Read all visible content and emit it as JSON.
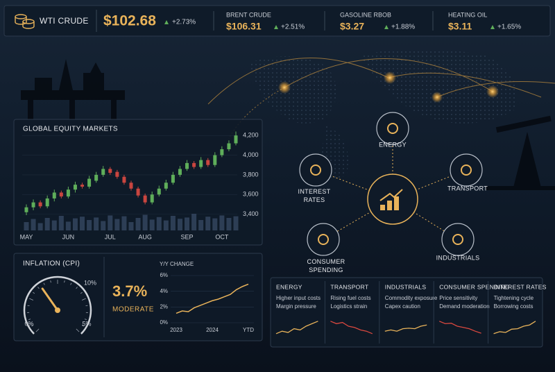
{
  "ticker": [
    {
      "name": "WTI CRUDE",
      "price": "$102.68",
      "change": "+2.73%"
    },
    {
      "name": "BRENT CRUDE",
      "price": "$106.31",
      "change": "+2.51%"
    },
    {
      "name": "GASOLINE RBOB",
      "price": "$3.27",
      "change": "+1.88%"
    },
    {
      "name": "HEATING OIL",
      "price": "$3.11",
      "change": "+1.65%"
    }
  ],
  "equity": {
    "type": "candlestick",
    "title": "GLOBAL EQUITY MARKETS",
    "categories": [
      "MAY",
      null,
      null,
      null,
      null,
      null,
      "JUN",
      null,
      null,
      null,
      null,
      null,
      "JUL",
      null,
      null,
      null,
      null,
      "AUG",
      null,
      null,
      null,
      null,
      null,
      "SEP",
      null,
      null,
      null,
      null,
      "OCT",
      null,
      null
    ],
    "open": [
      3420,
      3470,
      3520,
      3480,
      3560,
      3620,
      3580,
      3650,
      3700,
      3680,
      3740,
      3800,
      3860,
      3830,
      3780,
      3720,
      3660,
      3590,
      3520,
      3600,
      3660,
      3720,
      3800,
      3860,
      3920,
      3880,
      3950,
      3900,
      4000,
      4060,
      4120
    ],
    "close": [
      3470,
      3520,
      3480,
      3560,
      3620,
      3580,
      3650,
      3700,
      3680,
      3760,
      3800,
      3860,
      3820,
      3780,
      3720,
      3660,
      3590,
      3520,
      3600,
      3660,
      3720,
      3800,
      3860,
      3920,
      3880,
      3950,
      3900,
      4000,
      4060,
      4120,
      4200
    ],
    "high": [
      3500,
      3550,
      3540,
      3590,
      3650,
      3640,
      3680,
      3730,
      3720,
      3790,
      3830,
      3890,
      3880,
      3850,
      3800,
      3740,
      3680,
      3610,
      3630,
      3690,
      3750,
      3830,
      3890,
      3950,
      3940,
      3980,
      3970,
      4030,
      4090,
      4150,
      4240
    ],
    "low": [
      3390,
      3440,
      3460,
      3460,
      3530,
      3560,
      3560,
      3620,
      3660,
      3660,
      3720,
      3780,
      3800,
      3760,
      3700,
      3640,
      3570,
      3500,
      3500,
      3580,
      3640,
      3700,
      3780,
      3840,
      3860,
      3860,
      3880,
      3880,
      3980,
      4040,
      4100
    ],
    "volume": [
      40,
      55,
      35,
      60,
      48,
      70,
      42,
      58,
      66,
      50,
      62,
      45,
      72,
      55,
      68,
      40,
      60,
      75,
      52,
      64,
      48,
      70,
      56,
      62,
      80,
      50,
      66,
      58,
      72,
      60,
      68
    ],
    "up_color": "#5fae5a",
    "down_color": "#c9453f",
    "ylim": [
      3200,
      4300
    ],
    "yticks": [
      {
        "value": 3400,
        "label": "3,400"
      },
      {
        "value": 3600,
        "label": "3,600"
      },
      {
        "value": 3800,
        "label": "3,800"
      },
      {
        "value": 4000,
        "label": "4,000"
      },
      {
        "value": 4200,
        "label": "4,200"
      }
    ]
  },
  "inflation": {
    "title": "INFLATION (CPI)",
    "gauge": {
      "type": "gauge",
      "value": 3.7,
      "value_label": "3.7%",
      "status": "MODERATE",
      "lim": [
        0,
        10
      ],
      "ticks": [
        {
          "value": 0,
          "label": "0%"
        },
        {
          "value": 5,
          "label": "5%"
        },
        {
          "value": 10,
          "label": "10%"
        }
      ]
    },
    "trend": {
      "type": "line",
      "title": "Y/Y CHANGE",
      "color": "#e9b35a",
      "categories": [
        "2023",
        null,
        null,
        null,
        null,
        null,
        "2024",
        null,
        null,
        null,
        null,
        null,
        "YTD"
      ],
      "values": [
        1.2,
        1.5,
        1.4,
        1.9,
        2.2,
        2.5,
        2.8,
        3.0,
        3.3,
        3.6,
        4.2,
        4.6,
        4.9
      ],
      "ylim": [
        0,
        6
      ],
      "yticks": [
        {
          "value": 0,
          "label": "0%"
        },
        {
          "value": 2,
          "label": "2%"
        },
        {
          "value": 4,
          "label": "4%"
        },
        {
          "value": 6,
          "label": "6%"
        }
      ]
    }
  },
  "network": {
    "center": "impact",
    "nodes": [
      {
        "label": "ENERGY"
      },
      {
        "label": "INTEREST RATES"
      },
      {
        "label": "TRANSPORT"
      },
      {
        "label": "CONSUMER SPENDING"
      },
      {
        "label": "INDUSTRIALS"
      }
    ]
  },
  "sectors": [
    {
      "title": "ENERGY",
      "lines": [
        "Higher input costs",
        "Margin pressure"
      ],
      "color": "#e9b35a",
      "trend": [
        2,
        3,
        2.5,
        4,
        3.5,
        5,
        6,
        7
      ]
    },
    {
      "title": "TRANSPORT",
      "lines": [
        "Rising fuel costs",
        "Logistics strain"
      ],
      "color": "#d9483f",
      "trend": [
        7,
        6,
        6.5,
        5,
        4.5,
        3.5,
        3,
        2
      ]
    },
    {
      "title": "INDUSTRIALS",
      "lines": [
        "Commodity exposure",
        "Capex caution"
      ],
      "color": "#e9b35a",
      "trend": [
        3,
        3.5,
        3,
        4,
        4.2,
        4,
        5,
        5.5
      ]
    },
    {
      "title": "CONSUMER SPENDING",
      "lines": [
        "Price sensitivity",
        "Demand moderation"
      ],
      "color": "#d9483f",
      "trend": [
        7,
        6,
        6.2,
        5,
        4.5,
        4,
        3,
        2.2
      ]
    },
    {
      "title": "INTEREST RATES",
      "lines": [
        "Tightening cycle",
        "Borrowing costs"
      ],
      "color": "#e9b35a",
      "trend": [
        2,
        2.8,
        2.5,
        3.8,
        4,
        5,
        5.5,
        7
      ]
    }
  ]
}
